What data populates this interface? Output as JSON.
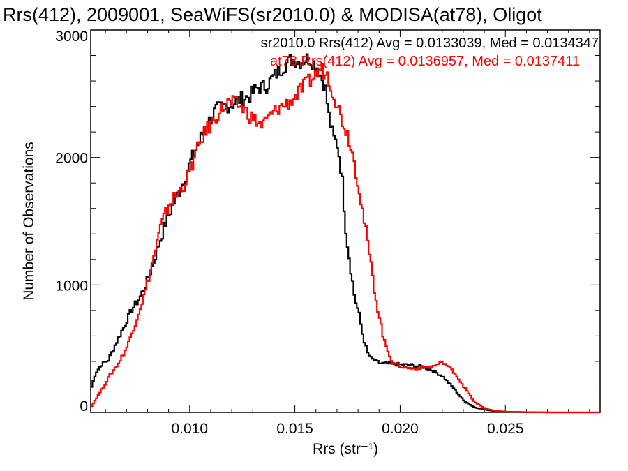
{
  "chart_data": {
    "type": "line",
    "title": "Rrs(412), 2009001, SeaWiFS(sr2010.0) & MODISA(at78), Oligot",
    "xlabel": "Rrs (str⁻¹)",
    "ylabel": "Number of Observations",
    "xlim": [
      0.0053,
      0.0295
    ],
    "ylim": [
      0,
      3000
    ],
    "xticks": [
      0.01,
      0.015,
      0.02,
      0.025
    ],
    "xtick_labels": [
      "0.010",
      "0.015",
      "0.020",
      "0.025"
    ],
    "yticks": [
      0,
      1000,
      2000,
      3000
    ],
    "ytick_labels": [
      "0",
      "1000",
      "2000",
      "3000"
    ],
    "grid": false,
    "legend_position": "top-right",
    "series": [
      {
        "name": "sr2010.0 Rrs(412) Avg = 0.0133039, Med = 0.0134347",
        "color": "#000000",
        "points": [
          [
            0.0053,
            200
          ],
          [
            0.0055,
            310
          ],
          [
            0.0058,
            380
          ],
          [
            0.0061,
            410
          ],
          [
            0.0064,
            520
          ],
          [
            0.0068,
            660
          ],
          [
            0.0072,
            800
          ],
          [
            0.0076,
            900
          ],
          [
            0.008,
            1050
          ],
          [
            0.0084,
            1260
          ],
          [
            0.0088,
            1480
          ],
          [
            0.0092,
            1640
          ],
          [
            0.0096,
            1790
          ],
          [
            0.01,
            1960
          ],
          [
            0.0104,
            2120
          ],
          [
            0.0108,
            2260
          ],
          [
            0.0112,
            2370
          ],
          [
            0.0116,
            2400
          ],
          [
            0.012,
            2420
          ],
          [
            0.0124,
            2460
          ],
          [
            0.0128,
            2480
          ],
          [
            0.0132,
            2550
          ],
          [
            0.0136,
            2560
          ],
          [
            0.014,
            2640
          ],
          [
            0.0144,
            2710
          ],
          [
            0.0148,
            2770
          ],
          [
            0.0152,
            2750
          ],
          [
            0.0156,
            2780
          ],
          [
            0.016,
            2720
          ],
          [
            0.0164,
            2560
          ],
          [
            0.0166,
            2300
          ],
          [
            0.0168,
            2150
          ],
          [
            0.017,
            2100
          ],
          [
            0.0172,
            1850
          ],
          [
            0.0174,
            1400
          ],
          [
            0.0176,
            1150
          ],
          [
            0.0178,
            900
          ],
          [
            0.018,
            780
          ],
          [
            0.0182,
            600
          ],
          [
            0.0184,
            470
          ],
          [
            0.0186,
            420
          ],
          [
            0.019,
            385
          ],
          [
            0.0195,
            380
          ],
          [
            0.02,
            375
          ],
          [
            0.0205,
            370
          ],
          [
            0.021,
            360
          ],
          [
            0.0215,
            330
          ],
          [
            0.022,
            280
          ],
          [
            0.0225,
            190
          ],
          [
            0.023,
            90
          ],
          [
            0.0235,
            40
          ],
          [
            0.024,
            20
          ],
          [
            0.0245,
            10
          ],
          [
            0.025,
            5
          ],
          [
            0.026,
            2
          ],
          [
            0.027,
            0
          ],
          [
            0.0295,
            0
          ]
        ]
      },
      {
        "name": "at78 Rrs(412) Avg = 0.0136957, Med = 0.0137411",
        "color": "#ff0000",
        "points": [
          [
            0.0053,
            50
          ],
          [
            0.0056,
            130
          ],
          [
            0.0059,
            210
          ],
          [
            0.0062,
            300
          ],
          [
            0.0066,
            390
          ],
          [
            0.007,
            520
          ],
          [
            0.0074,
            710
          ],
          [
            0.0078,
            920
          ],
          [
            0.0082,
            1180
          ],
          [
            0.0086,
            1460
          ],
          [
            0.009,
            1640
          ],
          [
            0.0094,
            1710
          ],
          [
            0.0098,
            1820
          ],
          [
            0.0102,
            2000
          ],
          [
            0.0106,
            2170
          ],
          [
            0.011,
            2270
          ],
          [
            0.0114,
            2370
          ],
          [
            0.0118,
            2430
          ],
          [
            0.0122,
            2420
          ],
          [
            0.0126,
            2370
          ],
          [
            0.013,
            2300
          ],
          [
            0.0134,
            2250
          ],
          [
            0.0138,
            2330
          ],
          [
            0.0142,
            2390
          ],
          [
            0.0146,
            2420
          ],
          [
            0.015,
            2480
          ],
          [
            0.0154,
            2560
          ],
          [
            0.0158,
            2620
          ],
          [
            0.0162,
            2700
          ],
          [
            0.0165,
            2650
          ],
          [
            0.0168,
            2500
          ],
          [
            0.0172,
            2300
          ],
          [
            0.0176,
            2120
          ],
          [
            0.018,
            1780
          ],
          [
            0.0184,
            1350
          ],
          [
            0.0188,
            900
          ],
          [
            0.0192,
            560
          ],
          [
            0.0196,
            390
          ],
          [
            0.02,
            360
          ],
          [
            0.0205,
            345
          ],
          [
            0.021,
            350
          ],
          [
            0.0215,
            360
          ],
          [
            0.022,
            395
          ],
          [
            0.0225,
            320
          ],
          [
            0.023,
            200
          ],
          [
            0.0235,
            80
          ],
          [
            0.024,
            30
          ],
          [
            0.0245,
            12
          ],
          [
            0.025,
            5
          ],
          [
            0.026,
            2
          ],
          [
            0.027,
            0
          ],
          [
            0.0295,
            0
          ]
        ]
      }
    ]
  }
}
